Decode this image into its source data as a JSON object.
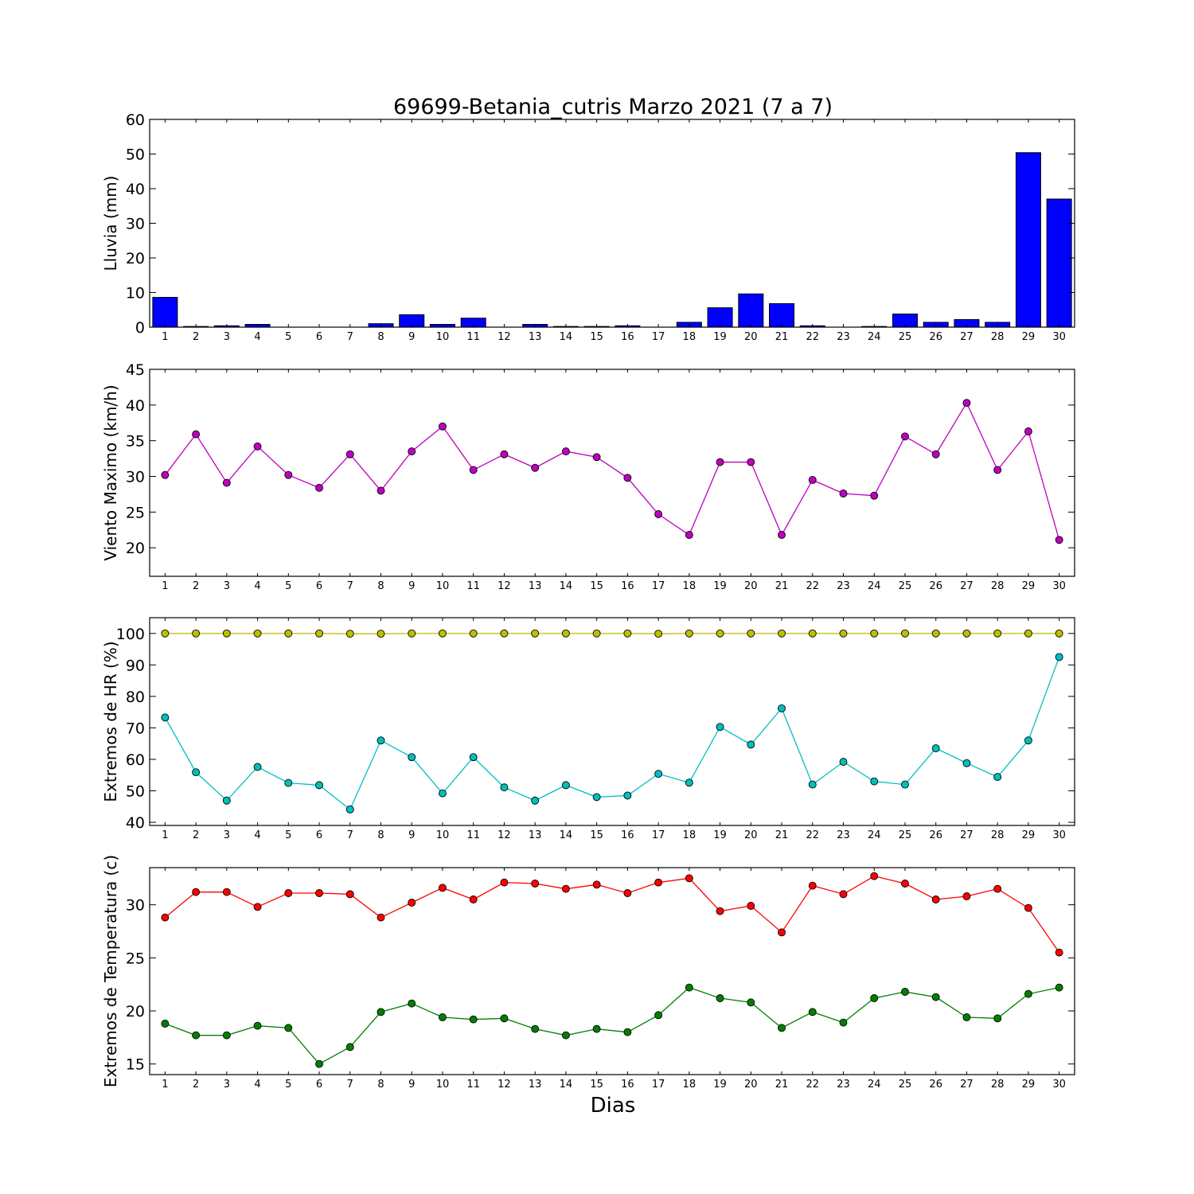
{
  "title": "69699-Betania_cutris Marzo 2021  (7 a 7)",
  "xlabel": "Dias",
  "chart_data": [
    {
      "type": "bar",
      "ylabel": "Lluvia (mm)",
      "ylim": [
        0,
        60
      ],
      "yticks": [
        0,
        10,
        20,
        30,
        40,
        50,
        60
      ],
      "categories": [
        1,
        2,
        3,
        4,
        5,
        6,
        7,
        8,
        9,
        10,
        11,
        12,
        13,
        14,
        15,
        16,
        17,
        18,
        19,
        20,
        21,
        22,
        23,
        24,
        25,
        26,
        27,
        28,
        29,
        30
      ],
      "series": [
        {
          "color": "#0000ff",
          "values": [
            8.6,
            0.2,
            0.4,
            0.8,
            0,
            0,
            0,
            1.0,
            3.6,
            0.8,
            2.6,
            0,
            0.8,
            0.2,
            0.2,
            0.4,
            0,
            1.4,
            5.6,
            9.6,
            6.8,
            0.4,
            0,
            0.2,
            3.8,
            1.4,
            2.2,
            1.4,
            50.4,
            37.0
          ]
        }
      ]
    },
    {
      "type": "line",
      "ylabel": "Viento Maximo (km/h)",
      "ylim": [
        16,
        45
      ],
      "yticks": [
        20,
        25,
        30,
        35,
        40,
        45
      ],
      "categories": [
        1,
        2,
        3,
        4,
        5,
        6,
        7,
        8,
        9,
        10,
        11,
        12,
        13,
        14,
        15,
        16,
        17,
        18,
        19,
        20,
        21,
        22,
        23,
        24,
        25,
        26,
        27,
        28,
        29,
        30
      ],
      "series": [
        {
          "color": "#bf00bf",
          "values": [
            30.2,
            35.9,
            29.1,
            34.2,
            30.2,
            28.4,
            33.1,
            28.0,
            33.5,
            37.0,
            30.9,
            33.1,
            31.2,
            33.5,
            32.7,
            29.8,
            24.7,
            21.8,
            32.0,
            32.0,
            21.8,
            29.5,
            27.6,
            27.3,
            35.6,
            33.1,
            40.3,
            30.9,
            36.3,
            21.1
          ]
        }
      ]
    },
    {
      "type": "line",
      "ylabel": "Extremos de HR (%)",
      "ylim": [
        39,
        105
      ],
      "yticks": [
        40,
        50,
        60,
        70,
        80,
        90,
        100
      ],
      "categories": [
        1,
        2,
        3,
        4,
        5,
        6,
        7,
        8,
        9,
        10,
        11,
        12,
        13,
        14,
        15,
        16,
        17,
        18,
        19,
        20,
        21,
        22,
        23,
        24,
        25,
        26,
        27,
        28,
        29,
        30
      ],
      "series": [
        {
          "color": "#bfbf00",
          "values": [
            100,
            100,
            100,
            100,
            100,
            100,
            99.9,
            99.9,
            100,
            100,
            100,
            100,
            100,
            100,
            100,
            100,
            99.9,
            100,
            100,
            100,
            100,
            100,
            100,
            100,
            100,
            100,
            100,
            100,
            100,
            100
          ]
        },
        {
          "color": "#00bfbf",
          "values": [
            73.3,
            55.9,
            46.9,
            57.6,
            52.5,
            51.8,
            44.1,
            66.0,
            60.7,
            49.2,
            60.7,
            51.1,
            46.9,
            51.8,
            48.0,
            48.5,
            55.4,
            52.6,
            70.3,
            64.7,
            76.2,
            52.0,
            59.2,
            53.0,
            52.0,
            63.5,
            58.8,
            54.4,
            66.0,
            92.5
          ]
        }
      ]
    },
    {
      "type": "line",
      "ylabel": "Extremos de Temperatura (c)",
      "ylim": [
        14,
        33.5
      ],
      "yticks": [
        15,
        20,
        25,
        30
      ],
      "categories": [
        1,
        2,
        3,
        4,
        5,
        6,
        7,
        8,
        9,
        10,
        11,
        12,
        13,
        14,
        15,
        16,
        17,
        18,
        19,
        20,
        21,
        22,
        23,
        24,
        25,
        26,
        27,
        28,
        29,
        30
      ],
      "series": [
        {
          "color": "#ff0000",
          "values": [
            28.8,
            31.2,
            31.2,
            29.8,
            31.1,
            31.1,
            31.0,
            28.8,
            30.2,
            31.6,
            30.5,
            32.1,
            32.0,
            31.5,
            31.9,
            31.1,
            32.1,
            32.5,
            29.4,
            29.9,
            27.4,
            31.8,
            31.0,
            32.7,
            32.0,
            30.5,
            30.8,
            31.5,
            29.7,
            25.5
          ]
        },
        {
          "color": "#008000",
          "values": [
            18.8,
            17.7,
            17.7,
            18.6,
            18.4,
            15.0,
            16.6,
            19.9,
            20.7,
            19.4,
            19.2,
            19.3,
            18.3,
            17.7,
            18.3,
            18.0,
            19.6,
            22.2,
            21.2,
            20.8,
            18.4,
            19.9,
            18.9,
            21.2,
            21.8,
            21.3,
            19.4,
            19.3,
            21.6,
            22.2
          ]
        }
      ]
    }
  ]
}
